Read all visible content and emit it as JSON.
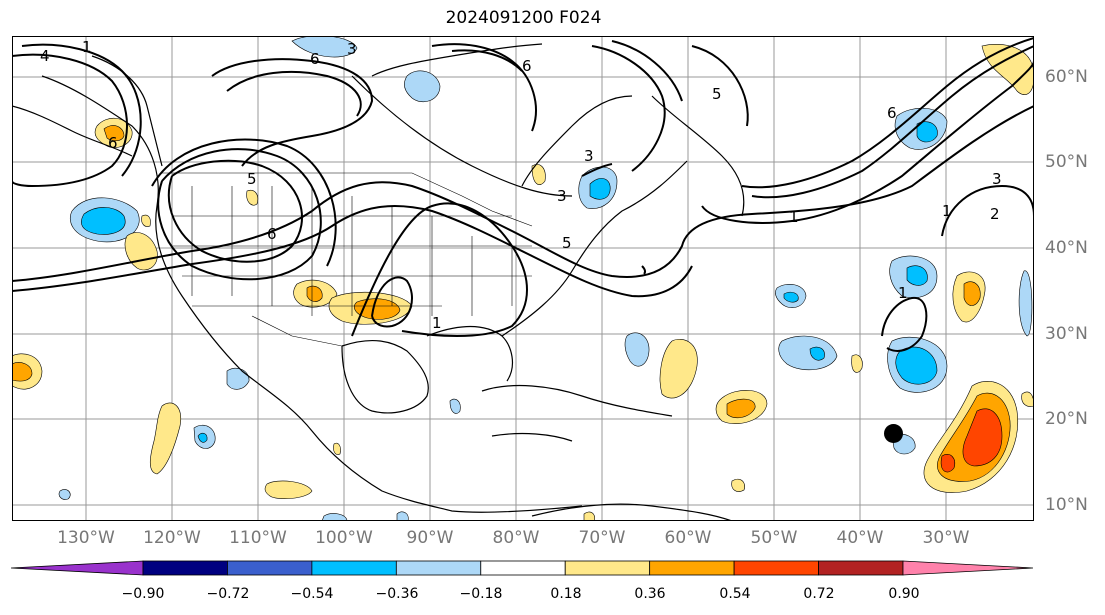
{
  "title": "2024091200 F024",
  "longitude_labels": [
    "130°W",
    "120°W",
    "110°W",
    "100°W",
    "90°W",
    "80°W",
    "70°W",
    "60°W",
    "50°W",
    "40°W",
    "30°W"
  ],
  "latitude_labels": [
    "60°N",
    "50°N",
    "40°N",
    "30°N",
    "20°N",
    "10°N"
  ],
  "contour_labels": [
    "1",
    "2",
    "3",
    "4",
    "5",
    "6"
  ],
  "colorbar": {
    "ticks": [
      "−0.90",
      "−0.72",
      "−0.54",
      "−0.36",
      "−0.18",
      "0.18",
      "0.36",
      "0.54",
      "0.72",
      "0.90"
    ],
    "colors": [
      "#9932cc",
      "#000080",
      "#3a5fcd",
      "#00bfff",
      "#add8f7",
      "#ffffff",
      "#ffe88a",
      "#ffa500",
      "#ff4500",
      "#b22222",
      "#ff82ab"
    ]
  },
  "marker": "storm-center-dot"
}
